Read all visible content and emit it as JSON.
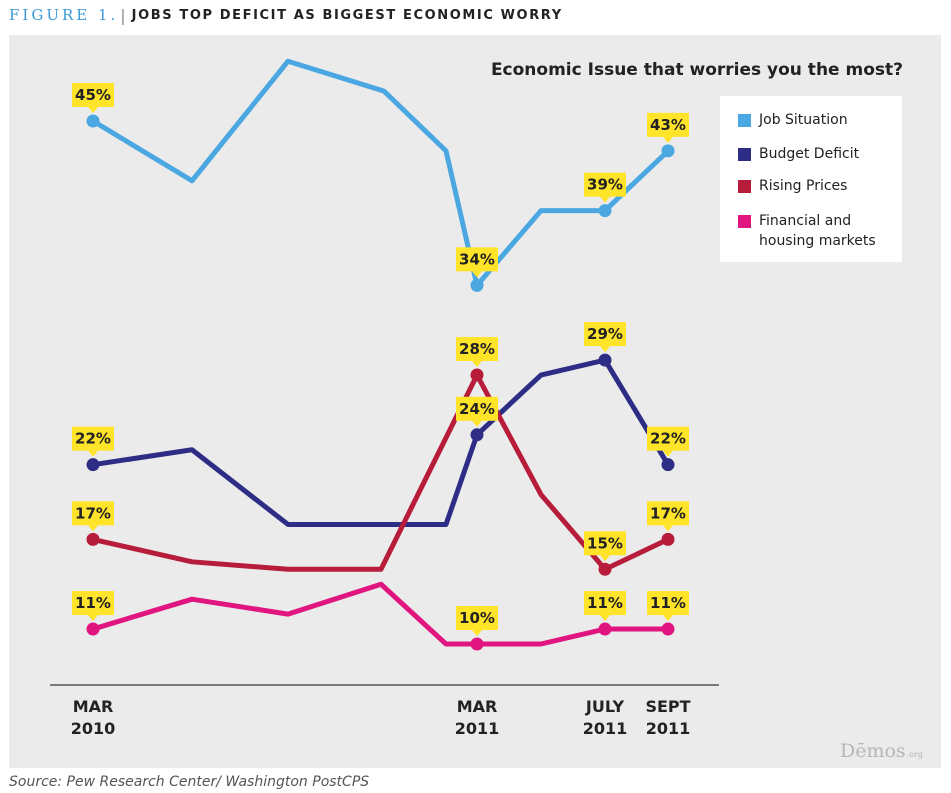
{
  "header": {
    "figure_label": "FIGURE 1.",
    "separator": "|",
    "title": "JOBS TOP DEFICIT AS BIGGEST ECONOMIC WORRY"
  },
  "source": "Source: Pew Research Center/ Washington PostCPS",
  "logo_text": "Dēmos",
  "logo_suffix": ".org",
  "colors": {
    "panel_background": "#ebebeb",
    "label_highlight": "#ffe42a",
    "axis": "#7a7a7a"
  },
  "chart_data": {
    "type": "line",
    "title": "Economic Issue that worries you the most?",
    "xlabel": "",
    "ylabel": "",
    "ylim": [
      5,
      50
    ],
    "grid": false,
    "legend_position": "top-right",
    "x_ticks": [
      "MAR 2010",
      "MAR 2011",
      "JULY 2011",
      "SEPT 2011"
    ],
    "x_tick_index": [
      0,
      6,
      8,
      9
    ],
    "series": [
      {
        "name": "Job Situation",
        "color": "#4aa7e1",
        "values": [
          45,
          41,
          49,
          47,
          43,
          34,
          39,
          39,
          43
        ],
        "points_index": [
          0,
          1,
          2,
          3,
          4,
          5,
          7,
          8,
          9
        ],
        "labels": [
          {
            "index": 0,
            "text": "45%"
          },
          {
            "index": 5,
            "text": "34%"
          },
          {
            "index": 8,
            "text": "39%"
          },
          {
            "index": 9,
            "text": "43%"
          }
        ]
      },
      {
        "name": "Budget Deficit",
        "color": "#2d2d86",
        "values": [
          22,
          23,
          18,
          18,
          24,
          28,
          29,
          22
        ],
        "points_index": [
          0,
          1,
          2,
          4,
          6,
          7,
          8,
          9
        ],
        "labels": [
          {
            "index": 0,
            "text": "22%"
          },
          {
            "index": 6,
            "text": "24%"
          },
          {
            "index": 8,
            "text": "29%"
          },
          {
            "index": 9,
            "text": "22%"
          }
        ]
      },
      {
        "name": "Rising Prices",
        "color": "#b71c3a",
        "values": [
          17,
          15.5,
          15,
          15,
          28,
          20,
          15,
          17
        ],
        "points_index": [
          0,
          1,
          2,
          3.4,
          6,
          7,
          8,
          9
        ],
        "labels": [
          {
            "index": 0,
            "text": "17%"
          },
          {
            "index": 6,
            "text": "28%"
          },
          {
            "index": 8,
            "text": "15%"
          },
          {
            "index": 9,
            "text": "17%"
          }
        ]
      },
      {
        "name": "Financial and housing markets",
        "color": "#e0157f",
        "values": [
          11,
          13,
          12,
          14,
          10,
          10,
          10,
          11,
          11
        ],
        "points_index": [
          0,
          1,
          2,
          3,
          4,
          6,
          7,
          8,
          9
        ],
        "labels": [
          {
            "index": 0,
            "text": "11%"
          },
          {
            "index": 6,
            "text": "10%"
          },
          {
            "index": 8,
            "text": "11%"
          },
          {
            "index": 9,
            "text": "11%"
          }
        ]
      }
    ]
  }
}
